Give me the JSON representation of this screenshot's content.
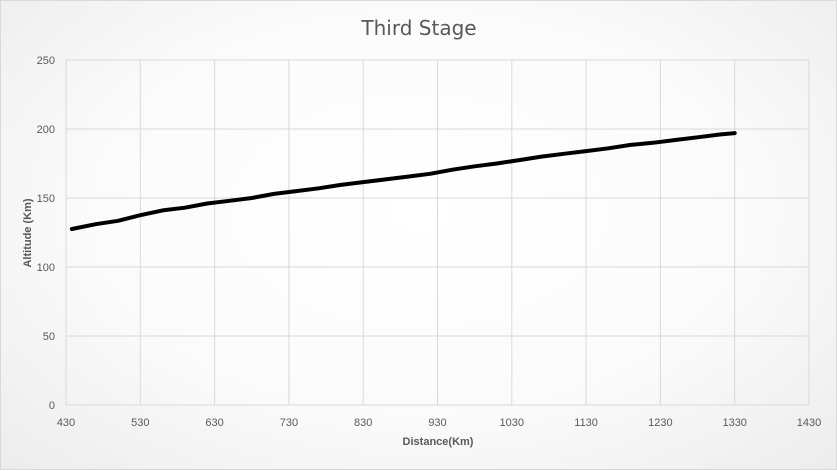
{
  "chart_data": {
    "type": "line",
    "title": "Third Stage",
    "xlabel": "Distance(Km)",
    "ylabel": "Altitude (Km)",
    "xlim": [
      430,
      1430
    ],
    "ylim": [
      0,
      250
    ],
    "x_ticks": [
      "430",
      "530",
      "630",
      "730",
      "830",
      "930",
      "1030",
      "1130",
      "1230",
      "1330",
      "1430"
    ],
    "y_ticks": [
      "0",
      "50",
      "100",
      "150",
      "200",
      "250"
    ],
    "grid": true,
    "legend": "none",
    "colors": {
      "line": "#000000",
      "grid": "#d9d9d9",
      "text": "#595959"
    },
    "series": [
      {
        "x": [
          438,
          470,
          500,
          530,
          560,
          590,
          620,
          650,
          680,
          710,
          740,
          770,
          800,
          830,
          860,
          890,
          920,
          950,
          980,
          1010,
          1040,
          1070,
          1100,
          1130,
          1160,
          1190,
          1220,
          1250,
          1280,
          1310,
          1330
        ],
        "y": [
          127.5,
          131,
          133.5,
          137.5,
          141,
          143,
          146,
          148,
          150,
          153,
          155,
          157,
          159.5,
          161.5,
          163.5,
          165.5,
          167.5,
          170.5,
          173,
          175,
          177.5,
          180,
          182,
          184,
          186,
          188.5,
          190,
          192,
          194,
          196,
          197
        ]
      }
    ]
  }
}
